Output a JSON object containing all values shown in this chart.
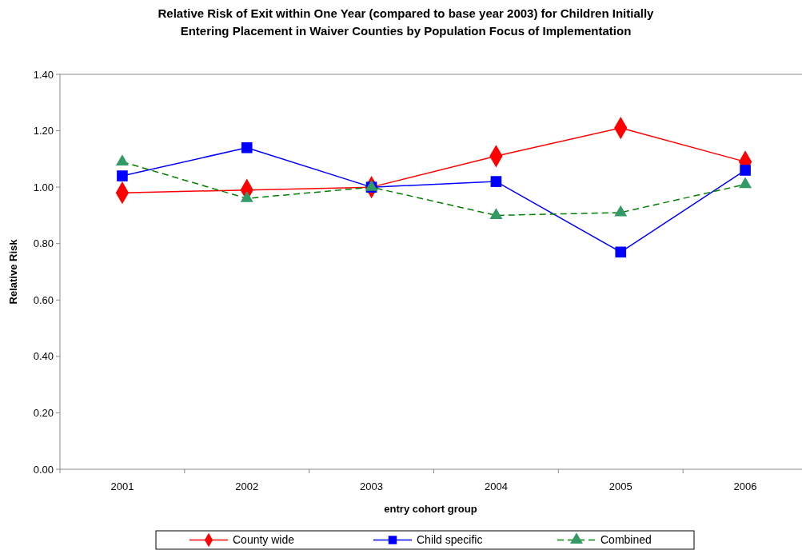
{
  "chart_data": {
    "type": "line",
    "title": "Relative Risk of Exit within One Year  (compared to base year 2003) for Children Initially Entering Placement in Waiver Counties by Population Focus of Implementation",
    "xlabel": "entry cohort group",
    "ylabel": "Relative Risk",
    "categories": [
      "2001",
      "2002",
      "2003",
      "2004",
      "2005",
      "2006"
    ],
    "series": [
      {
        "name": "County wide",
        "color": "#ff0000",
        "marker": "diamond",
        "line_style": "solid",
        "values": [
          0.98,
          0.99,
          1.0,
          1.11,
          1.21,
          1.09
        ]
      },
      {
        "name": "Child specific",
        "color": "#0000ff",
        "marker": "square",
        "line_style": "solid",
        "values": [
          1.04,
          1.14,
          1.0,
          1.02,
          0.77,
          1.06
        ]
      },
      {
        "name": "Combined",
        "color": "#339966",
        "marker": "triangle",
        "line_style": "dashed",
        "values": [
          1.09,
          0.96,
          1.0,
          0.9,
          0.91,
          1.01
        ]
      }
    ],
    "ylim": [
      0,
      1.4
    ],
    "yticks": [
      {
        "value": 0,
        "label": "0.00"
      },
      {
        "value": 0.2,
        "label": "0.20"
      },
      {
        "value": 0.4,
        "label": "0.40"
      },
      {
        "value": 0.6,
        "label": "0.60"
      },
      {
        "value": 0.8,
        "label": "0.80"
      },
      {
        "value": 1.0,
        "label": "1.00"
      },
      {
        "value": 1.2,
        "label": "1.20"
      },
      {
        "value": 1.4,
        "label": "1.40"
      }
    ],
    "grid": false,
    "legend": "bottom"
  }
}
